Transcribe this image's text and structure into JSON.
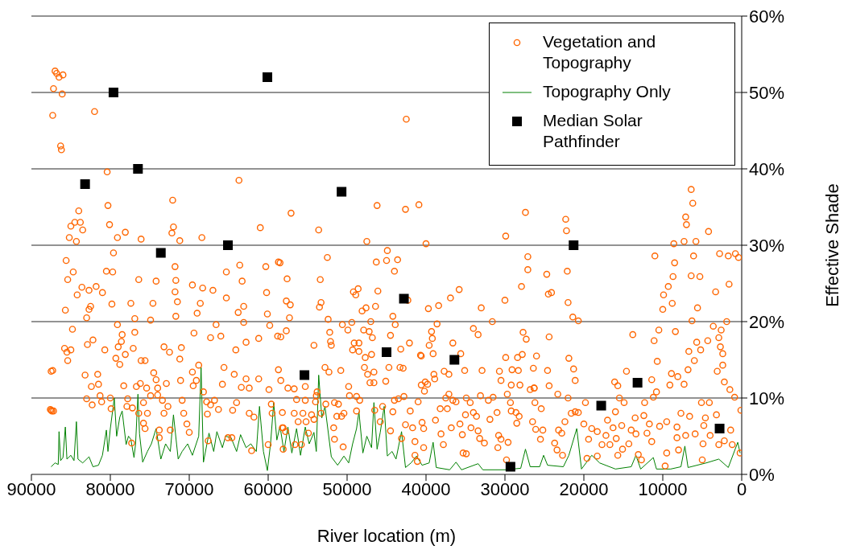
{
  "chart_data": {
    "type": "scatter",
    "xlabel": "River location (m)",
    "ylabel": "Effective Shade",
    "xlim": [
      90000,
      0
    ],
    "xticks": [
      90000,
      80000,
      70000,
      60000,
      50000,
      40000,
      30000,
      20000,
      10000,
      0
    ],
    "ylim": [
      0,
      60
    ],
    "yticks": [
      {
        "value": 0,
        "label": "0%"
      },
      {
        "value": 10,
        "label": "10%"
      },
      {
        "value": 20,
        "label": "20%"
      },
      {
        "value": 30,
        "label": "30%"
      },
      {
        "value": 40,
        "label": "40%"
      },
      {
        "value": 50,
        "label": "50%"
      },
      {
        "value": 60,
        "label": "60%"
      }
    ],
    "grid": "y",
    "legend": "top right",
    "series": [
      {
        "name": "Vegetation and Topography",
        "marker": "circle",
        "color": "#ff6600",
        "x": [
          87000,
          86800,
          86500,
          86000,
          87200,
          86100,
          87300,
          86300,
          86200,
          87500,
          87600,
          87400,
          84500,
          85000,
          83800,
          84000,
          85200,
          83500,
          84300,
          85600,
          84700,
          85400,
          83600,
          84200,
          85700,
          84800,
          83000,
          82500,
          85800,
          85500,
          83200,
          82900,
          82400,
          82000,
          80400,
          80300,
          80100,
          79600,
          79100,
          78100,
          76100,
          72100,
          72000,
          72200,
          71200,
          68400,
          63700,
          61000,
          71800,
          71700,
          71800,
          71500,
          71700,
          74200,
          76400,
          80500,
          79700,
          81800,
          81000,
          82700,
          82700,
          79800,
          77400,
          74600,
          76900,
          74900,
          79100,
          78500,
          78600,
          79000,
          80700,
          82200,
          79300,
          78800,
          78100,
          77100,
          76900,
          76100,
          74500,
          74200,
          73200,
          72500,
          71200,
          71000,
          71100,
          69600,
          69400,
          69600,
          68300,
          68600,
          69000,
          67000,
          66600,
          67300,
          66000,
          65300,
          65300,
          63600,
          63300,
          63100,
          63800,
          63100,
          62800,
          64100,
          65600,
          65800,
          64300,
          62800,
          62400,
          61200,
          61200,
          60300,
          60200,
          60100,
          59800,
          58800,
          58700,
          58700,
          58400,
          87300,
          85400,
          85000,
          81600,
          81500,
          81300,
          83000,
          82300,
          81100,
          80000,
          79900,
          78300,
          77800,
          77900,
          77200,
          76700,
          76200,
          75600,
          75400,
          74900,
          75800,
          76400,
          75300,
          75800,
          75600,
          77300,
          74000,
          74000,
          73400,
          72900,
          72700,
          73200,
          73800,
          73800,
          72400,
          70900,
          70700,
          70300,
          70000,
          69500,
          69100,
          68800,
          68200,
          67800,
          67700,
          67600,
          67300,
          66800,
          66300,
          65100,
          64600,
          64500,
          64000,
          63400,
          62400,
          61800,
          62100,
          60000,
          59900,
          59600,
          59500,
          58200,
          58100,
          87500,
          87200,
          42500,
          57100,
          53600,
          46200,
          42600,
          40900,
          47500,
          40000,
          27400,
          29900,
          52500,
          58500,
          57600,
          53400,
          46300,
          44900,
          45000,
          43600,
          44000,
          49200,
          48600,
          48900,
          46100,
          57700,
          57200,
          57300,
          53300,
          53500,
          52400,
          48100,
          47600,
          46400,
          44200,
          43900,
          47000,
          42300,
          39700,
          38400,
          36900,
          35800,
          33000,
          30000,
          27900,
          27100,
          27100,
          31600,
          38600,
          39300,
          39200,
          39600,
          39100,
          40700,
          42100,
          43200,
          44500,
          46800,
          47200,
          47900,
          49900,
          50600,
          49400,
          52200,
          52100,
          52000,
          54200,
          57700,
          58400,
          49100,
          48500,
          49300,
          48500,
          47700,
          46900,
          52800,
          52300,
          50800,
          47800,
          47400,
          46600,
          47100,
          46600,
          45100,
          44700,
          43300,
          42900,
          40600,
          39000,
          38900,
          37700,
          37100,
          36600,
          35600,
          35100,
          32900,
          30700,
          30500,
          29900,
          28400,
          27800,
          27300,
          27700,
          29100,
          28300,
          29200,
          28100,
          29700,
          26800,
          26300,
          34000,
          33400,
          55300,
          57500,
          56700,
          56400,
          55300,
          58200,
          56700,
          55600,
          56200,
          55200,
          54500,
          54200,
          53900,
          54000,
          53800,
          53300,
          52700,
          51600,
          51100,
          51300,
          50700,
          50400,
          49800,
          49700,
          48800,
          48400,
          48800,
          51700,
          51600,
          50500,
          58100,
          57800,
          56600,
          55800,
          54900,
          46500,
          45500,
          45800,
          44500,
          44200,
          44000,
          43500,
          42800,
          42600,
          43100,
          42000,
          41700,
          41400,
          41400,
          41100,
          41000,
          40600,
          40100,
          39800,
          40200,
          40500,
          40300,
          40300,
          38800,
          38200,
          38100,
          37800,
          37500,
          37300,
          37100,
          36800,
          36600,
          36200,
          35700,
          35400,
          35300,
          34900,
          34900,
          34400,
          35000,
          34000,
          33600,
          34300,
          33400,
          33200,
          32600,
          33100,
          32100,
          31500,
          31900,
          31000,
          30500,
          30800,
          30900,
          29600,
          29300,
          29200,
          28600,
          28500,
          29800,
          28200,
          6400,
          6200,
          7100,
          7000,
          22300,
          22200,
          7300,
          5800,
          4200,
          8600,
          11000,
          6100,
          2800,
          1700,
          800,
          400,
          8500,
          8700,
          6400,
          5300,
          1600,
          3300,
          9300,
          9900,
          8800,
          10000,
          5600,
          22100,
          24700,
          24500,
          24100,
          22000,
          21400,
          20700,
          6300,
          1900,
          10500,
          8400,
          13800,
          24400,
          11100,
          6700,
          5700,
          5200,
          4300,
          3600,
          2600,
          2900,
          2700,
          2400,
          2400,
          3100,
          2200,
          1500,
          900,
          100,
          200,
          6000,
          6800,
          7300,
          8100,
          9100,
          8900,
          10700,
          10800,
          11200,
          11400,
          12300,
          14600,
          15700,
          16100,
          15500,
          14900,
          16000,
          19800,
          22000,
          23300,
          24400,
          26000,
          26400,
          26300,
          24600,
          21300,
          21100,
          21900,
          21100,
          26200,
          25400,
          26500,
          26100,
          25200,
          25500,
          23700,
          23200,
          22800,
          23400,
          22700,
          22400,
          21600,
          20700,
          20000,
          19400,
          19000,
          19600,
          18300,
          18300,
          17700,
          17000,
          16300,
          17200,
          16700,
          15900,
          15200,
          15700,
          15100,
          14300,
          14000,
          13500,
          13400,
          13100,
          12700,
          12400,
          12000,
          11700,
          11400,
          10400,
          9700,
          9500,
          9500,
          8200,
          8200,
          8000,
          7700,
          7100,
          5900,
          5000,
          4800,
          4600,
          4900,
          4000,
          3200,
          2900,
          2200,
          1400,
          1200,
          6600,
          4100,
          5100
        ],
        "values": [
          52.8,
          52.5,
          52,
          52.3,
          50.5,
          49.8,
          47,
          43,
          42.5,
          13.5,
          8.5,
          8.3,
          33,
          32.5,
          33,
          34.5,
          31,
          32,
          30.5,
          28,
          26.5,
          25.5,
          24.5,
          23.5,
          21.5,
          19,
          20.5,
          22,
          16.5,
          16,
          13,
          17,
          11.5,
          47.5,
          39.6,
          35.2,
          32.7,
          29,
          31,
          31.7,
          30.8,
          35.9,
          32.4,
          31.6,
          30.6,
          31,
          38.5,
          32.3,
          27.2,
          25.4,
          23.9,
          22.6,
          20.7,
          25.3,
          25.5,
          26.6,
          26.5,
          24.6,
          23.8,
          24.1,
          21.6,
          22.3,
          22.4,
          22.4,
          20.4,
          20.2,
          19.6,
          18.3,
          17.4,
          16.7,
          16.3,
          17.6,
          15.2,
          14.4,
          15.7,
          16.5,
          18.6,
          14.9,
          13.3,
          12.4,
          16.7,
          16,
          15.1,
          16.6,
          12.3,
          13.4,
          18.5,
          24.8,
          24.4,
          22.4,
          21.1,
          24.1,
          19.6,
          17.9,
          18.1,
          23.1,
          26.5,
          27.4,
          25.3,
          22,
          21.2,
          19.9,
          17.3,
          16.3,
          14,
          11.8,
          13.1,
          12.5,
          11.3,
          12.5,
          17.8,
          27.2,
          23.8,
          21,
          19.5,
          18.1,
          27.8,
          13.7,
          12.3,
          13.6,
          14.9,
          16.3,
          13.1,
          11.8,
          10.3,
          9.9,
          9.1,
          9.5,
          10,
          8.6,
          11.6,
          9.9,
          8.9,
          8.7,
          11.5,
          11.9,
          14.9,
          11.3,
          10.3,
          9.4,
          8,
          8,
          6.7,
          6,
          4.1,
          10.4,
          11.3,
          9.7,
          11.9,
          8.9,
          8,
          5.8,
          4.8,
          5.8,
          9.7,
          8,
          6.6,
          5.5,
          11.6,
          12.3,
          14.3,
          10.8,
          9.5,
          7.9,
          4.4,
          9.1,
          9.7,
          8.5,
          4.8,
          4.8,
          8.4,
          9.4,
          11.4,
          8,
          7.5,
          3.1,
          3.9,
          11.1,
          9.2,
          8,
          6.1,
          3.3,
          8.4,
          8.3,
          46.5,
          34.2,
          32,
          35.2,
          34.7,
          35.3,
          30.5,
          30.2,
          34.3,
          31.2,
          28.4,
          27.7,
          25.6,
          25.5,
          27.8,
          29.3,
          28,
          28.1,
          26.6,
          23.9,
          24.3,
          23.5,
          24,
          22.7,
          22.2,
          20.5,
          22.5,
          21.9,
          20.3,
          21.4,
          21.8,
          22,
          20.7,
          19.6,
          20,
          22.8,
          21.7,
          22.1,
          23.1,
          24.2,
          21.8,
          22.8,
          24.6,
          28.5,
          26.8,
          20,
          19.7,
          18.7,
          17.8,
          16.9,
          15.8,
          15.6,
          17.2,
          16.4,
          18.2,
          17.9,
          18.7,
          18.9,
          18.9,
          19.6,
          19.9,
          18.6,
          17.4,
          16.9,
          16.9,
          18.8,
          18,
          17.2,
          17.2,
          16.3,
          16.1,
          15.3,
          15.7,
          14,
          13.4,
          13.6,
          14,
          13.1,
          13.4,
          12,
          12,
          12.2,
          14,
          14,
          13.9,
          15.5,
          13.1,
          12.5,
          13.5,
          13.1,
          17.2,
          15.8,
          13.6,
          13.6,
          13.5,
          12.3,
          15.3,
          15.3,
          15.7,
          17.7,
          18.6,
          13.7,
          13.6,
          11.7,
          11.7,
          10.5,
          11.1,
          11.3,
          19.1,
          18.3,
          11.5,
          11.3,
          11.2,
          9.8,
          9.7,
          8.1,
          8,
          8,
          6.9,
          6.9,
          7.8,
          7.2,
          10.3,
          9.5,
          10.8,
          8,
          9.2,
          9.4,
          9.2,
          7.6,
          7.6,
          8,
          11.5,
          10.3,
          10.2,
          9.7,
          8.3,
          6.1,
          4.6,
          3.6,
          6.1,
          5.6,
          3.9,
          3.9,
          5.4,
          8.4,
          8.9,
          6.9,
          5.7,
          8.2,
          9.7,
          9.9,
          10.2,
          6.5,
          4.7,
          8.3,
          6.1,
          4.3,
          2.5,
          1.7,
          9.5,
          11.7,
          12.1,
          11.8,
          10.9,
          6.8,
          3.5,
          6,
          7.1,
          8.6,
          5.3,
          3.9,
          10,
          8.6,
          10.5,
          6.1,
          9.7,
          9.5,
          6.6,
          5.2,
          2.8,
          2.7,
          10,
          9.4,
          7.8,
          8.1,
          7.6,
          6.1,
          5.7,
          4.7,
          4.1,
          10.3,
          9.7,
          10.1,
          7.2,
          8.1,
          4.6,
          5.1,
          3.5,
          4.2,
          9.4,
          8.3,
          8.1,
          6.7,
          1.9,
          7.6,
          37.3,
          35.5,
          33.7,
          32.7,
          33.4,
          31.9,
          30.5,
          30.5,
          31.8,
          30.2,
          28.6,
          28.6,
          28.9,
          28.6,
          28.9,
          28.4,
          27.7,
          25.9,
          26,
          25.9,
          24.9,
          23.9,
          24.6,
          23.5,
          22.4,
          21.6,
          21.8,
          26.6,
          26.2,
          23.6,
          23.8,
          22.5,
          20.6,
          20.1,
          20.1,
          20,
          18.9,
          18.7,
          18.3,
          18,
          17.5,
          16.1,
          17.3,
          16.3,
          17.5,
          19.4,
          18.9,
          17.9,
          16.7,
          15.8,
          14.3,
          13.5,
          12.1,
          11.1,
          10.1,
          8.4,
          2.8,
          14.9,
          13.7,
          11.8,
          12.8,
          11.7,
          13.2,
          14.8,
          10.8,
          10.1,
          12.4,
          9.4,
          13.5,
          11.6,
          12.1,
          10,
          9.4,
          8.2,
          9.4,
          10,
          10.5,
          11.6,
          15.5,
          13.9,
          11.3,
          13.6,
          13.8,
          12.3,
          15.2,
          8.2,
          9.4,
          8.6,
          6.9,
          5.9,
          5.8,
          4.6,
          4.1,
          5.8,
          5.4,
          3.2,
          2.5,
          6.9,
          8,
          8.1,
          6.6,
          4.6,
          6,
          2.1,
          2.4,
          5.6,
          3.9,
          7.1,
          6.1,
          5.1,
          3.9,
          4.7,
          6.4,
          2.5,
          3.3,
          4,
          5.8,
          7.4,
          5.3,
          2.6,
          1.9,
          7.7,
          5.4,
          6.6,
          4.3,
          6.3,
          1.1,
          2.8,
          6.9,
          6.2,
          4.8,
          3.2,
          8,
          5.1,
          5.3,
          1.9,
          6.4,
          7.4,
          4,
          5.1,
          7.8,
          3.9,
          4.4,
          5.8,
          3.9,
          7.6,
          9.4,
          9.4
        ]
      },
      {
        "name": "Topography Only",
        "type": "line",
        "marker": "none",
        "line_style": "solid",
        "color": "#008000",
        "x": [
          87500,
          87000,
          86600,
          86500,
          86300,
          86000,
          85700,
          85500,
          85000,
          84600,
          84300,
          84100,
          83500,
          82700,
          82200,
          81500,
          81000,
          80500,
          80300,
          80000,
          79500,
          79200,
          78800,
          78500,
          78000,
          77700,
          77400,
          77000,
          76800,
          76500,
          76300,
          75900,
          75300,
          74800,
          74200,
          73600,
          73000,
          72400,
          72000,
          71400,
          70900,
          70200,
          69600,
          68800,
          68500,
          68200,
          67500,
          66900,
          66500,
          65800,
          65400,
          64700,
          64000,
          63500,
          62800,
          62200,
          61500,
          61100,
          60600,
          60100,
          59700,
          59300,
          58900,
          58500,
          58000,
          57500,
          57000,
          56400,
          55900,
          55300,
          54800,
          54200,
          53900,
          53600,
          53200,
          52800,
          52000,
          51200,
          50400,
          49800,
          49300,
          48800,
          48500,
          48000,
          47500,
          46900,
          46600,
          46200,
          45800,
          45300,
          44900,
          44300,
          43800,
          43100,
          42600,
          41900,
          41200,
          40500,
          39600,
          39100,
          38700,
          37000,
          36200,
          35500,
          33400,
          32800,
          30000,
          28000,
          27400,
          26800,
          25600,
          25100,
          24600,
          22600,
          21900,
          20900,
          20300,
          19000,
          18000,
          16000,
          14000,
          13400,
          12800,
          11200,
          10800,
          9000,
          7700,
          7200,
          6800,
          4500,
          2900,
          1700,
          500,
          200
        ],
        "values": [
          1,
          1.5,
          1.3,
          5.6,
          1.8,
          2.2,
          6.2,
          2,
          2.5,
          1.8,
          6.9,
          2,
          1.5,
          2.3,
          1,
          1.2,
          2.5,
          5.8,
          3,
          6,
          10,
          5,
          7.5,
          8.3,
          3.9,
          5,
          4.6,
          2.2,
          4,
          10.5,
          5.3,
          1.6,
          3,
          4,
          6,
          2,
          4,
          3,
          7.8,
          2,
          3,
          4,
          2.5,
          5,
          14,
          1.6,
          5.4,
          3,
          5.6,
          3.5,
          5,
          4.8,
          3,
          5.2,
          3.5,
          4,
          3,
          8.9,
          3,
          0.5,
          4,
          9.4,
          4.5,
          6.3,
          3,
          6.2,
          2.8,
          6,
          2.5,
          6.2,
          4,
          5.5,
          3,
          13,
          7.4,
          8.9,
          2.3,
          1.2,
          2.4,
          1.5,
          4,
          6,
          8.2,
          2.8,
          5,
          3.5,
          9.4,
          3.3,
          5.5,
          8.9,
          2.4,
          3,
          2,
          5.6,
          0.9,
          1.5,
          2.4,
          1.2,
          1.5,
          4.2,
          0.9,
          0.6,
          1.6,
          0.6,
          1.4,
          0.6,
          0.6,
          0.8,
          3.3,
          1,
          1,
          2.5,
          1.2,
          1,
          2.5,
          6,
          0.7,
          2.5,
          1.5,
          0.7,
          1,
          2.5,
          0.7,
          2.2,
          0.7,
          0.7,
          1,
          3.7,
          0.9,
          1.5,
          2,
          0.9,
          4.2,
          2.8
        ]
      },
      {
        "name": "Median Solar Pathfinder",
        "marker": "square",
        "color": "#000000",
        "x": [
          83200,
          79600,
          76500,
          73600,
          65100,
          60100,
          55400,
          50700,
          45000,
          42800,
          36400,
          29300,
          21300,
          17800,
          13200,
          2800
        ],
        "values": [
          38,
          50,
          40,
          29,
          30,
          52,
          13,
          37,
          16,
          23,
          15,
          1,
          30,
          9,
          12,
          6
        ]
      }
    ]
  }
}
